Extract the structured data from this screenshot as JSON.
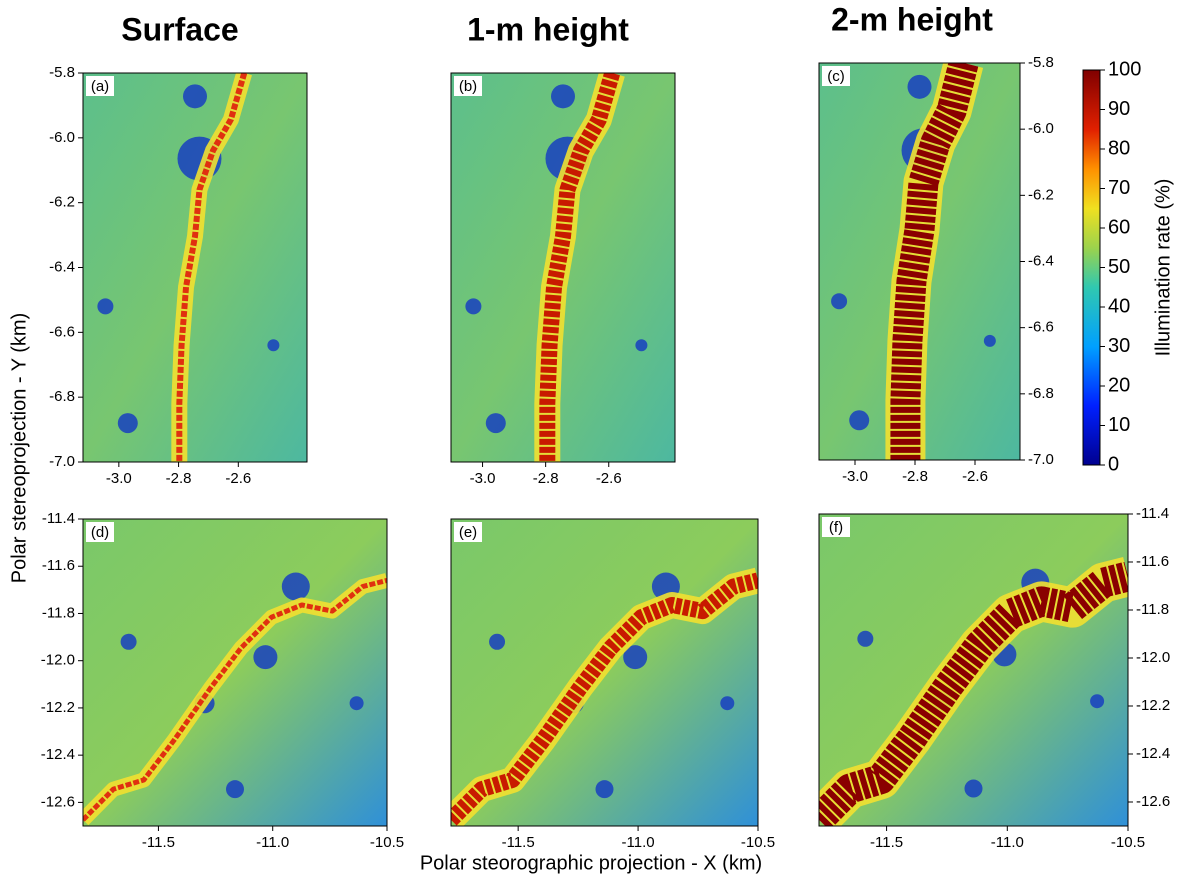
{
  "chart_data": [
    {
      "type": "heatmap",
      "title": "Surface",
      "panel_label": "(a)",
      "ylabel": "Polar stereoprojection - Y (km)",
      "xlim": [
        -3.12,
        -2.37
      ],
      "ylim": [
        -7.0,
        -5.8
      ],
      "xticks": [
        {
          "value": -3.0,
          "label": "-3.0"
        },
        -2.8,
        -2.6
      ],
      "yticks": [
        -5.8,
        {
          "value": -6.0,
          "label": "-6.0"
        },
        -6.2,
        -6.4,
        -6.6,
        -6.8,
        {
          "value": -7.0,
          "label": "-7.0"
        }
      ]
    },
    {
      "type": "heatmap",
      "title": "1-m height",
      "panel_label": "(b)",
      "xlim": [
        -3.1,
        -2.39
      ],
      "ylim": [
        -7.0,
        -5.8
      ],
      "xticks": [
        {
          "value": -3.0,
          "label": "-3.0"
        },
        -2.8,
        -2.6
      ]
    },
    {
      "type": "heatmap",
      "title": "2-m height",
      "panel_label": "(c)",
      "xlim": [
        -3.12,
        -2.45
      ],
      "ylim": [
        -7.0,
        -5.8
      ],
      "xticks": [
        {
          "value": -3.0,
          "label": "-3.0"
        },
        -2.8,
        -2.6
      ],
      "yticks": [
        -5.8,
        {
          "value": -6.0,
          "label": "-6.0"
        },
        -6.2,
        -6.4,
        -6.6,
        -6.8,
        {
          "value": -7.0,
          "label": "-7.0"
        }
      ],
      "colorbar": {
        "label": "Illumination rate (%)",
        "lim": [
          0,
          100
        ],
        "ticks": [
          0,
          10,
          20,
          30,
          40,
          50,
          60,
          70,
          80,
          90,
          100
        ]
      }
    },
    {
      "type": "heatmap",
      "panel_label": "(d)",
      "xlim": [
        -11.83,
        -10.5
      ],
      "ylim": [
        -12.7,
        -11.4
      ],
      "xticks": [
        -11.5,
        {
          "value": -11.0,
          "label": "-11.0"
        },
        -10.5
      ],
      "yticks": [
        -11.4,
        -11.6,
        -11.8,
        {
          "value": -12.0,
          "label": "-12.0"
        },
        -12.2,
        -12.4,
        -12.6
      ]
    },
    {
      "type": "heatmap",
      "panel_label": "(e)",
      "xlabel": "Polar steorographic projection - X (km)",
      "xlim": [
        -11.78,
        -10.5
      ],
      "ylim": [
        -12.7,
        -11.4
      ],
      "xticks": [
        -11.5,
        {
          "value": -11.0,
          "label": "-11.0"
        },
        -10.5
      ]
    },
    {
      "type": "heatmap",
      "panel_label": "(f)",
      "xlim": [
        -11.78,
        -10.5
      ],
      "ylim": [
        -12.7,
        -11.4
      ],
      "xticks": [
        -11.5,
        {
          "value": -11.0,
          "label": "-11.0"
        },
        -10.5
      ],
      "yticks": [
        -11.4,
        -11.6,
        -11.8,
        {
          "value": -12.0,
          "label": "-12.0"
        },
        -12.2,
        -12.4,
        -12.6
      ]
    }
  ]
}
